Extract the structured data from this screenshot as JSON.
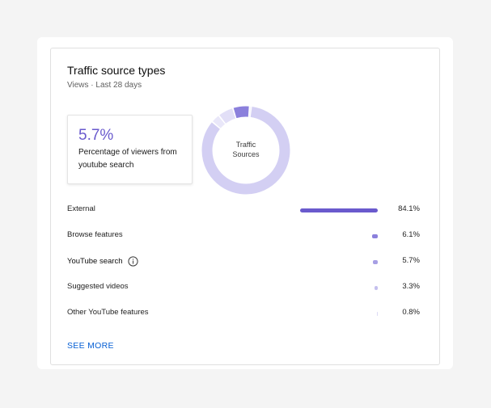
{
  "card": {
    "title": "Traffic source types",
    "subtitle": "Views · Last 28 days"
  },
  "highlight": {
    "value": "5.7%",
    "description": "Percentage of viewers from youtube search"
  },
  "donut": {
    "center_label_line1": "Traffic",
    "center_label_line2": "Sources"
  },
  "sources": [
    {
      "label": "External",
      "value": "84.1%",
      "percent": 84.1,
      "color": "#6a5acd"
    },
    {
      "label": "Browse features",
      "value": "6.1%",
      "percent": 6.1,
      "color": "#8b80dc"
    },
    {
      "label": "YouTube search",
      "value": "5.7%",
      "percent": 5.7,
      "color": "#a79fe4",
      "info_icon": "info-icon"
    },
    {
      "label": "Suggested videos",
      "value": "3.3%",
      "percent": 3.3,
      "color": "#c4bfee"
    },
    {
      "label": "Other YouTube features",
      "value": "0.8%",
      "percent": 0.8,
      "color": "#dcd9f4"
    }
  ],
  "see_more_label": "SEE MORE"
}
